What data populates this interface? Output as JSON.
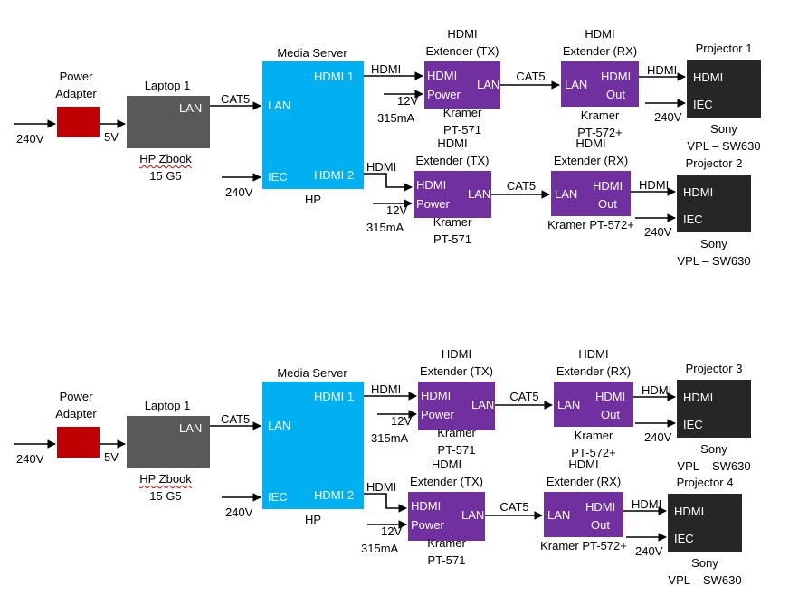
{
  "colors": {
    "power_adapter": "#c00000",
    "laptop": "#595959",
    "media_server": "#00b0f0",
    "extender": "#7030a0",
    "projector": "#262626"
  },
  "icons": [
    "arrow-icon"
  ],
  "diagrams": [
    {
      "power_adapter": {
        "title_line1": "Power",
        "title_line2": "Adapter",
        "in_voltage": "240V",
        "out_voltage": "5V"
      },
      "laptop": {
        "title": "Laptop 1",
        "port": "LAN",
        "model_line1": "HP Zbook",
        "model_line2": "15 G5",
        "cable": "CAT5"
      },
      "media_server": {
        "title": "Media Server",
        "port_hdmi1": "HDMI 1",
        "port_lan": "LAN",
        "port_iec": "IEC",
        "port_hdmi2": "HDMI 2",
        "maker": "HP",
        "power_voltage": "240V"
      },
      "chains": [
        {
          "hdmi_cable": "HDMI",
          "tx": {
            "title_line1": "HDMI",
            "title_line2": "Extender (TX)",
            "port_hdmi": "HDMI",
            "port_power": "Power",
            "port_lan": "LAN",
            "power_line1": "12V",
            "power_line2": "315mA",
            "model_line1": "Kramer",
            "model_line2": "PT-571"
          },
          "cat5": "CAT5",
          "rx": {
            "title_line1": "HDMI",
            "title_line2": "Extender (RX)",
            "port_lan": "LAN",
            "port_hdmi": "HDMI",
            "port_out": "Out",
            "model_line1": "Kramer",
            "model_line2": "PT-572+"
          },
          "out_cable": "HDMI",
          "projector": {
            "title": "Projector 1",
            "port_hdmi": "HDMI",
            "port_iec": "IEC",
            "power_voltage": "240V",
            "model_line1": "Sony",
            "model_line2": "VPL – SW630"
          }
        },
        {
          "hdmi_cable": "HDMI",
          "tx": {
            "title_line1": "HDMI",
            "title_line2": "Extender (TX)",
            "port_hdmi": "HDMI",
            "port_power": "Power",
            "port_lan": "LAN",
            "power_line1": "12V",
            "power_line2": "315mA",
            "model_line1": "Kramer",
            "model_line2": "PT-571"
          },
          "cat5": "CAT5",
          "rx": {
            "title_line1": "HDMI",
            "title_line2": "Extender (RX)",
            "port_lan": "LAN",
            "port_hdmi": "HDMI",
            "port_out": "Out",
            "model_line1": "Kramer PT-572+",
            "model_line2": ""
          },
          "out_cable": "HDMI",
          "projector": {
            "title": "Projector 2",
            "port_hdmi": "HDMI",
            "port_iec": "IEC",
            "power_voltage": "240V",
            "model_line1": "Sony",
            "model_line2": "VPL – SW630"
          }
        }
      ]
    },
    {
      "power_adapter": {
        "title_line1": "Power",
        "title_line2": "Adapter",
        "in_voltage": "240V",
        "out_voltage": "5V"
      },
      "laptop": {
        "title": "Laptop 1",
        "port": "LAN",
        "model_line1": "HP Zbook",
        "model_line2": "15 G5",
        "cable": "CAT5"
      },
      "media_server": {
        "title": "Media Server",
        "port_hdmi1": "HDMI 1",
        "port_lan": "LAN",
        "port_iec": "IEC",
        "port_hdmi2": "HDMI 2",
        "maker": "HP",
        "power_voltage": "240V"
      },
      "chains": [
        {
          "hdmi_cable": "HDMI",
          "tx": {
            "title_line1": "HDMI",
            "title_line2": "Extender (TX)",
            "port_hdmi": "HDMI",
            "port_power": "Power",
            "port_lan": "LAN",
            "power_line1": "12V",
            "power_line2": "315mA",
            "model_line1": "Kramer",
            "model_line2": "PT-571"
          },
          "cat5": "CAT5",
          "rx": {
            "title_line1": "HDMI",
            "title_line2": "Extender (RX)",
            "port_lan": "LAN",
            "port_hdmi": "HDMI",
            "port_out": "Out",
            "model_line1": "Kramer",
            "model_line2": "PT-572+"
          },
          "out_cable": "HDMI",
          "projector": {
            "title": "Projector 3",
            "port_hdmi": "HDMI",
            "port_iec": "IEC",
            "power_voltage": "240V",
            "model_line1": "Sony",
            "model_line2": "VPL – SW630"
          }
        },
        {
          "hdmi_cable": "HDMI",
          "tx": {
            "title_line1": "HDMI",
            "title_line2": "Extender (TX)",
            "port_hdmi": "HDMI",
            "port_power": "Power",
            "port_lan": "LAN",
            "power_line1": "12V",
            "power_line2": "315mA",
            "model_line1": "Kramer",
            "model_line2": "PT-571"
          },
          "cat5": "CAT5",
          "rx": {
            "title_line1": "HDMI",
            "title_line2": "Extender (RX)",
            "port_lan": "LAN",
            "port_hdmi": "HDMI",
            "port_out": "Out",
            "model_line1": "Kramer PT-572+",
            "model_line2": ""
          },
          "out_cable": "HDMI",
          "projector": {
            "title": "Projector 4",
            "port_hdmi": "HDMI",
            "port_iec": "IEC",
            "power_voltage": "240V",
            "model_line1": "Sony",
            "model_line2": "VPL – SW630"
          }
        }
      ]
    }
  ]
}
